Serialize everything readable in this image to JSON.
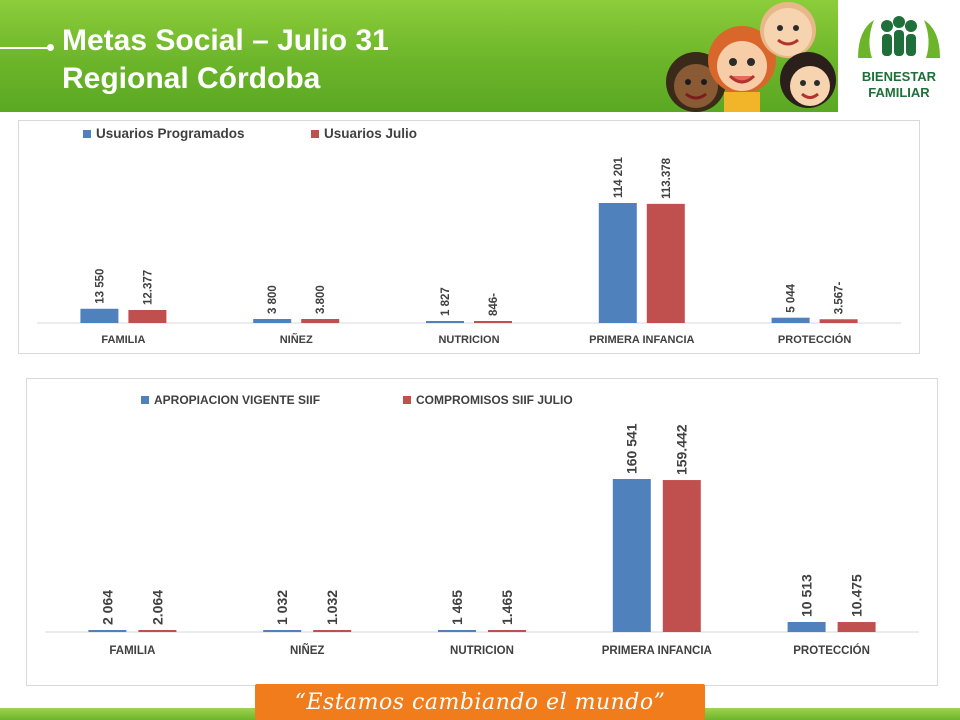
{
  "header": {
    "title_line1": "Metas Social – Julio 31",
    "title_line2": "Regional Córdoba",
    "logo_text_1": "BIENESTAR",
    "logo_text_2": "FAMILIAR",
    "logo_color": "#1f6f3a"
  },
  "footer": {
    "slogan": "“Estamos cambiando el mundo”",
    "slogan_color": "#f07c1c"
  },
  "colors": {
    "blue": "#4f81bd",
    "red": "#c0504d",
    "header_green": "#6cb52a"
  },
  "chart_data": [
    {
      "type": "bar",
      "categories": [
        "FAMILIA",
        "NIÑEZ",
        "NUTRICION",
        "PRIMERA  INFANCIA",
        "PROTECCIÓN"
      ],
      "series": [
        {
          "name": "Usuarios Programados",
          "values": [
            13550,
            3800,
            1827,
            114201,
            5044
          ],
          "labels": [
            "13 550",
            "3 800",
            "1 827",
            "114 201",
            "5 044"
          ],
          "color": "#4f81bd"
        },
        {
          "name": "Usuarios Julio",
          "values": [
            12377,
            3800,
            846,
            113378,
            3567
          ],
          "labels": [
            "12.377",
            "3.800",
            "846-",
            "113.378",
            "3.567-"
          ],
          "color": "#c0504d"
        }
      ],
      "ylim": [
        0,
        114201
      ],
      "legend": "top-left",
      "grid": false
    },
    {
      "type": "bar",
      "categories": [
        "FAMILIA",
        "NIÑEZ",
        "NUTRICION",
        "PRIMERA  INFANCIA",
        "PROTECCIÓN"
      ],
      "series": [
        {
          "name": "APROPIACION VIGENTE SIIF",
          "values": [
            2064,
            1032,
            1465,
            160541,
            10513
          ],
          "labels": [
            "2 064",
            "1 032",
            "1 465",
            "160 541",
            "10 513"
          ],
          "color": "#4f81bd"
        },
        {
          "name": "COMPROMISOS SIIF JULIO",
          "values": [
            2064,
            1032,
            1465,
            159442,
            10475
          ],
          "labels": [
            "2.064",
            "1.032",
            "1.465",
            "159.442",
            "10.475"
          ],
          "color": "#c0504d"
        }
      ],
      "ylim": [
        0,
        160541
      ],
      "legend": "top-left",
      "grid": false
    }
  ]
}
